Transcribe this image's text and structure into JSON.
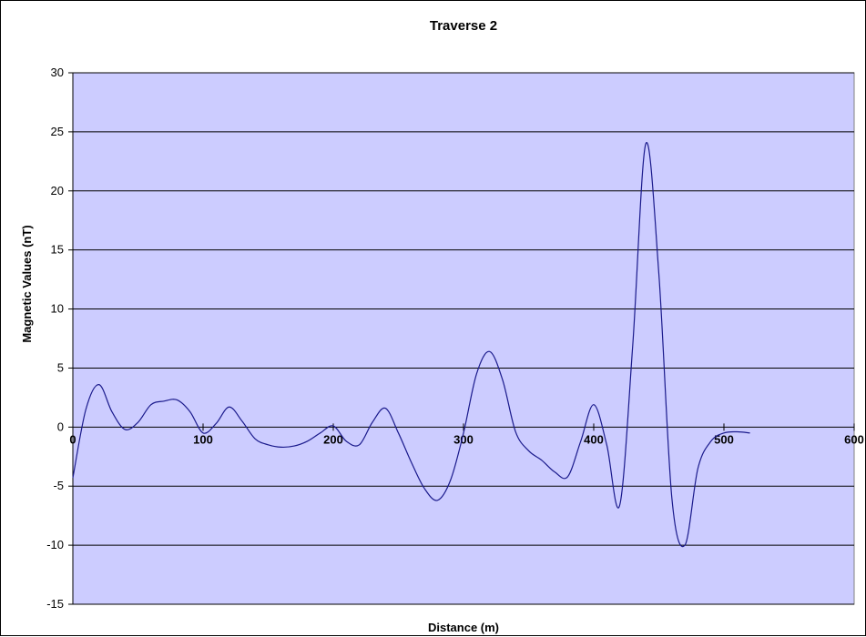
{
  "chart_data": {
    "type": "line",
    "title": "Traverse 2",
    "xlabel": "Distance (m)",
    "ylabel": "Magnetic Values (nT)",
    "xlim": [
      0,
      600
    ],
    "ylim": [
      -15,
      30
    ],
    "x_ticks": [
      0,
      100,
      200,
      300,
      400,
      500,
      600
    ],
    "y_ticks": [
      30,
      25,
      20,
      15,
      10,
      5,
      0,
      -5,
      -10,
      -15
    ],
    "grid": "horizontal",
    "plot_area_color": "#ccccff",
    "series": [
      {
        "color": "#1a1a8c",
        "x": [
          0,
          10,
          20,
          30,
          40,
          50,
          60,
          70,
          80,
          90,
          100,
          110,
          120,
          130,
          140,
          150,
          160,
          170,
          180,
          190,
          200,
          210,
          220,
          230,
          240,
          250,
          260,
          270,
          280,
          290,
          300,
          310,
          320,
          330,
          340,
          350,
          360,
          370,
          380,
          390,
          400,
          410,
          420,
          430,
          440,
          450,
          460,
          470,
          480,
          490,
          500,
          510,
          520
        ],
        "y": [
          -4.3,
          1.5,
          3.6,
          1.3,
          -0.2,
          0.4,
          1.9,
          2.2,
          2.3,
          1.3,
          -0.5,
          0.3,
          1.7,
          0.5,
          -1.0,
          -1.5,
          -1.7,
          -1.6,
          -1.2,
          -0.5,
          0.1,
          -1.2,
          -1.5,
          0.4,
          1.6,
          -0.5,
          -3.0,
          -5.2,
          -6.2,
          -4.5,
          -0.5,
          4.5,
          6.4,
          4.0,
          -0.4,
          -2.0,
          -2.8,
          -3.8,
          -4.2,
          -1.2,
          1.9,
          -1.5,
          -6.6,
          7.0,
          24.0,
          13.0,
          -6.0,
          -10.0,
          -3.5,
          -1.2,
          -0.5,
          -0.4,
          -0.5
        ]
      }
    ]
  }
}
